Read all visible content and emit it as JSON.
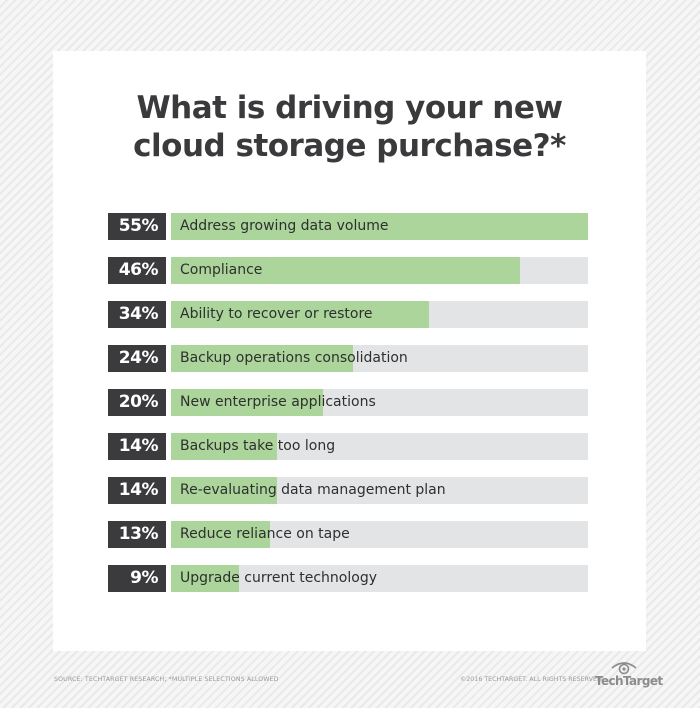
{
  "chart_data": {
    "type": "bar",
    "orientation": "horizontal",
    "title": "What is driving your new cloud storage purchase?*",
    "categories": [
      "Address growing data volume",
      "Compliance",
      "Ability to recover or restore",
      "Backup operations consolidation",
      "New enterprise applications",
      "Backups take too long",
      "Re-evaluating data management plan",
      "Reduce reliance on tape",
      "Upgrade current technology"
    ],
    "values": [
      55,
      46,
      34,
      24,
      20,
      14,
      14,
      13,
      9
    ],
    "value_labels": [
      "55%",
      "46%",
      "34%",
      "24%",
      "20%",
      "14%",
      "14%",
      "13%",
      "9%"
    ],
    "unit": "%",
    "xlim": [
      0,
      55
    ],
    "xlabel": "",
    "ylabel": "",
    "grid": false,
    "legend": null,
    "colors": {
      "fill": "#abd59b",
      "track": "#e2e4e6",
      "badge": "#3b3b3d"
    }
  },
  "header": {
    "title_line1": "What is driving your new",
    "title_line2": "cloud storage purchase?*"
  },
  "rows": [
    {
      "pct": "55%",
      "label": "Address growing data volume",
      "value": 55
    },
    {
      "pct": "46%",
      "label": "Compliance",
      "value": 46
    },
    {
      "pct": "34%",
      "label": "Ability to recover or restore",
      "value": 34
    },
    {
      "pct": "24%",
      "label": "Backup operations consolidation",
      "value": 24
    },
    {
      "pct": "20%",
      "label": "New enterprise applications",
      "value": 20
    },
    {
      "pct": "14%",
      "label": "Backups take too long",
      "value": 14
    },
    {
      "pct": "14%",
      "label": "Re-evaluating data management plan",
      "value": 14
    },
    {
      "pct": "13%",
      "label": "Reduce reliance on tape",
      "value": 13
    },
    {
      "pct": "9%",
      "label": "Upgrade current technology",
      "value": 9
    }
  ],
  "footer": {
    "source": "SOURCE: TECHTARGET RESEARCH; *MULTIPLE SELECTIONS ALLOWED",
    "copyright": "©2016 TECHTARGET. ALL RIGHTS RESERVED",
    "brand": "TechTarget",
    "brand_icon": "eye-icon"
  }
}
